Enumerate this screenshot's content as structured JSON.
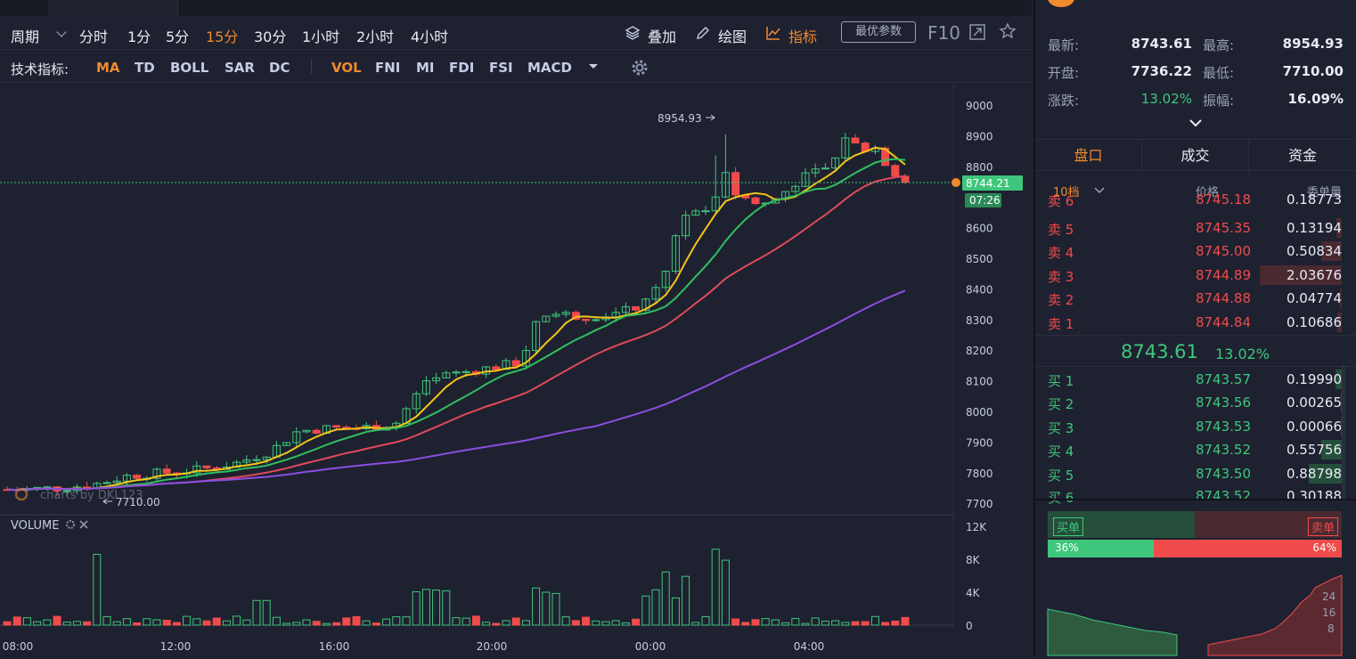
{
  "toolbar": {
    "period_label": "周期",
    "periods": [
      "分时",
      "1分",
      "5分",
      "15分",
      "30分",
      "1小时",
      "2小时",
      "4小时"
    ],
    "active_period": "15分",
    "overlay_label": "叠加",
    "draw_label": "绘图",
    "indicator_label": "指标",
    "best_params_label": "最优参数",
    "f10_label": "F10"
  },
  "indicators": {
    "label": "技术指标:",
    "main": [
      "MA",
      "TD",
      "BOLL",
      "SAR",
      "DC"
    ],
    "sub": [
      "VOL",
      "FNI",
      "MI",
      "FDI",
      "FSI",
      "MACD"
    ],
    "active_main": "MA",
    "active_sub": "VOL"
  },
  "chart": {
    "high_label": "8954.93",
    "low_label": "7710.00",
    "current_price_tag": "8744.21",
    "countdown_tag": "07:26",
    "watermark": "charts by DKL123",
    "volume_label": "VOLUME",
    "price_axis": [
      "9000",
      "8900",
      "8800",
      "8700",
      "8600",
      "8500",
      "8400",
      "8300",
      "8200",
      "8100",
      "8000",
      "7900",
      "7800",
      "7700"
    ],
    "volume_axis": [
      "12K",
      "8K",
      "4K",
      "0"
    ],
    "time_axis": [
      "08:00",
      "12:00",
      "16:00",
      "20:00",
      "00:00",
      "04:00"
    ]
  },
  "colors": {
    "up": "#3ec77c",
    "down": "#f04b4b",
    "accent": "#f08a2d",
    "ma_yellow": "#f5c518",
    "ma_green": "#2fbf5f",
    "ma_red": "#e04a5a",
    "ma_purple": "#8a4fe0"
  },
  "stats": {
    "latest_label": "最新:",
    "latest": "8743.61",
    "high_label": "最高:",
    "high": "8954.93",
    "open_label": "开盘:",
    "open": "7736.22",
    "low_label": "最低:",
    "low": "7710.00",
    "change_label": "涨跌:",
    "change": "13.02%",
    "amplitude_label": "振幅:",
    "amplitude": "16.09%"
  },
  "tabs": [
    "盘口",
    "成交",
    "资金"
  ],
  "orderbook": {
    "depth_label": "10档",
    "price_header": "价格",
    "qty_header": "委单量",
    "partial_top": {
      "side": "卖 6",
      "price": "8745.18",
      "qty": "0.18773"
    },
    "asks": [
      {
        "side": "卖 5",
        "price": "8745.35",
        "qty": "0.13194",
        "fill": 0.06
      },
      {
        "side": "卖 4",
        "price": "8745.00",
        "qty": "0.50834",
        "fill": 0.25
      },
      {
        "side": "卖 3",
        "price": "8744.89",
        "qty": "2.03676",
        "fill": 1.0
      },
      {
        "side": "卖 2",
        "price": "8744.88",
        "qty": "0.04774",
        "fill": 0.02
      },
      {
        "side": "卖 1",
        "price": "8744.84",
        "qty": "0.10686",
        "fill": 0.05
      }
    ],
    "mid_price": "8743.61",
    "mid_change": "13.02%",
    "bids": [
      {
        "side": "买 1",
        "price": "8743.57",
        "qty": "0.19990",
        "fill": 0.08
      },
      {
        "side": "买 2",
        "price": "8743.56",
        "qty": "0.00265",
        "fill": 0.01
      },
      {
        "side": "买 3",
        "price": "8743.53",
        "qty": "0.00066",
        "fill": 0.01
      },
      {
        "side": "买 4",
        "price": "8743.52",
        "qty": "0.55756",
        "fill": 0.25
      },
      {
        "side": "买 5",
        "price": "8743.50",
        "qty": "0.88798",
        "fill": 0.4
      }
    ],
    "partial_bottom": {
      "side": "买 6",
      "price": "8743.52",
      "qty": "0.30188"
    }
  },
  "ratio": {
    "buy_label": "买单",
    "sell_label": "卖单",
    "buy_pct": "36%",
    "sell_pct": "64%",
    "buy_fraction": 0.36
  },
  "depth_axis": [
    "24",
    "16",
    "8"
  ]
}
